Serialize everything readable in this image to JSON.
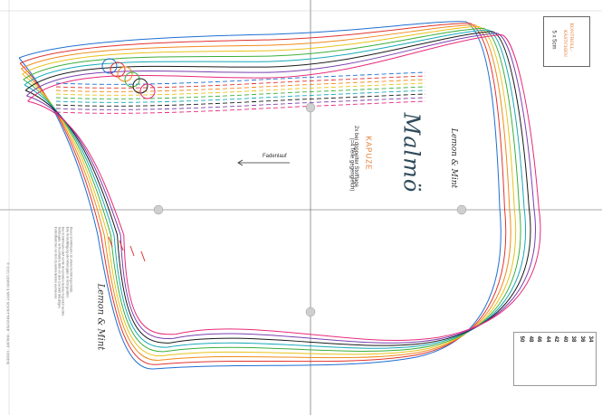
{
  "brand": "Lemon & Mint",
  "pattern_name": "Malmö",
  "piece": {
    "name": "KAPUZE",
    "line1": "2x bei doppelter Stofflage",
    "line2": "(=4 Teile gegengleich)"
  },
  "grain_label": "Fadenlauf",
  "control_square": {
    "title_line1": "KONTROLL-",
    "title_line2": "KÄSTCHEN",
    "size": "5 x 5cm"
  },
  "sizes": [
    {
      "label": "34",
      "color": "#1f6fd1"
    },
    {
      "label": "36",
      "color": "#e0342f"
    },
    {
      "label": "38",
      "color": "#f08a1c"
    },
    {
      "label": "40",
      "color": "#e8c21a"
    },
    {
      "label": "42",
      "color": "#3cae3a"
    },
    {
      "label": "44",
      "color": "#17a9b8"
    },
    {
      "label": "46",
      "color": "#1b1b1b"
    },
    {
      "label": "48",
      "color": "#7b3fb0"
    },
    {
      "label": "50",
      "color": "#e8297a"
    }
  ],
  "copyright": "© 2021 LEMON & MINT SCHNITTMUSTER · MALMÖ · HOODIE",
  "footnote_lines": [
    "Dieses Schnittmuster ist urheberrechtlich geschützt.",
    "Eine Vervielfältigung oder Weitergabe ist nicht gestattet.",
    "Das Schnittmuster darf nur für den privaten Gebrauch genutzt werden.",
    "Nahtzugabe nicht enthalten. Bitte vor dem Zuschnitt hinzufügen.",
    "Kontrollkästchen vor dem Zusammenkleben ausmessen."
  ]
}
